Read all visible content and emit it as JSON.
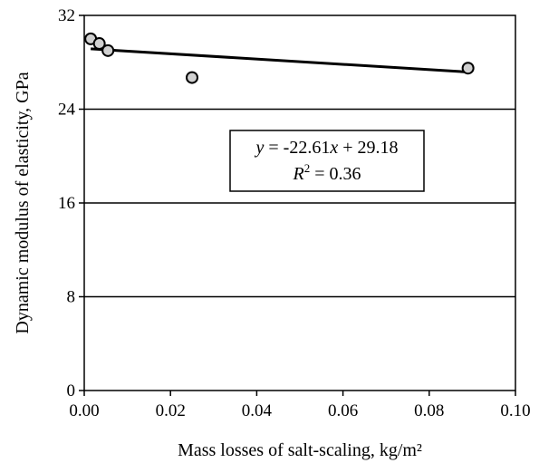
{
  "chart_data": {
    "type": "scatter",
    "xlabel": "Mass losses of salt-scaling, kg/m²",
    "ylabel": "Dynamic  modulus of elasticity, GPa",
    "xlim": [
      0.0,
      0.1
    ],
    "ylim": [
      0,
      32
    ],
    "xticks": [
      "0.00",
      "0.02",
      "0.04",
      "0.06",
      "0.08",
      "0.10"
    ],
    "yticks": [
      "0",
      "8",
      "16",
      "24",
      "32"
    ],
    "grid": "horizontal",
    "points": [
      {
        "x": 0.0015,
        "y": 30.0
      },
      {
        "x": 0.0035,
        "y": 29.6
      },
      {
        "x": 0.0055,
        "y": 29.0
      },
      {
        "x": 0.025,
        "y": 26.7
      },
      {
        "x": 0.089,
        "y": 27.5
      }
    ],
    "trendline": {
      "slope": -22.61,
      "intercept": 29.18,
      "x_range": [
        0.0015,
        0.089
      ],
      "equation_y": "y",
      "equation_rest": " = -22.61",
      "equation_x": "x",
      "equation_tail": " + 29.18",
      "r2_label": "R",
      "r2_sup": "2",
      "r2_value": " = 0.36"
    },
    "colors": {
      "marker_fill": "#d0d0d0",
      "marker_stroke": "#000000",
      "line": "#000000",
      "grid": "#000000"
    }
  }
}
